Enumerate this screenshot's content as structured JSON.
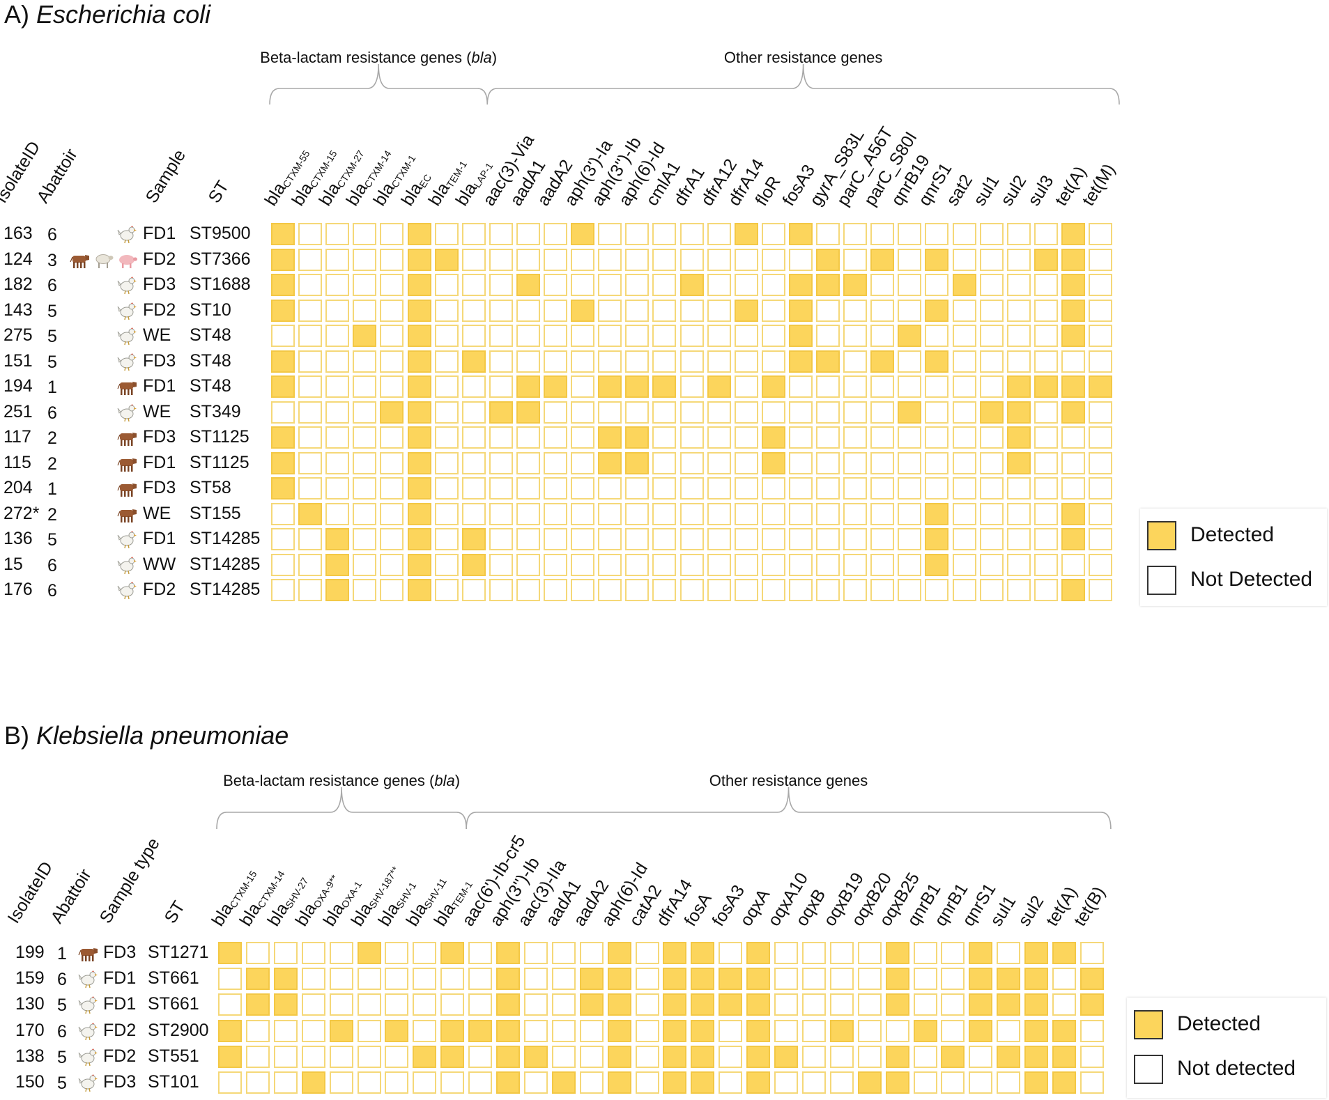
{
  "legend_colors": {
    "detected": "#fcd55c",
    "not_detected": "#ffffff",
    "cell_border": "#f5d878"
  },
  "panels": [
    {
      "title_prefix": "A) ",
      "title_species": "Escherichia coli",
      "group_bla_label": "Beta-lactam resistance genes (",
      "group_bla_italic": "bla",
      "group_bla_close": ")",
      "group_other_label": "Other resistance genes",
      "col_headers": {
        "isolate": "IsolateID",
        "abattoir": "Abattoir",
        "sample": "Sample",
        "st": "ST"
      },
      "legend": {
        "detected": "Detected",
        "not_detected": "Not Detected"
      },
      "genes": [
        {
          "base": "bla",
          "sub": "CTXM-55"
        },
        {
          "base": "bla",
          "sub": "CTXM-15"
        },
        {
          "base": "bla",
          "sub": "CTXM-27"
        },
        {
          "base": "bla",
          "sub": "CTXM-14"
        },
        {
          "base": "bla",
          "sub": "CTXM-1"
        },
        {
          "base": "bla",
          "sub": "EC"
        },
        {
          "base": "bla",
          "sub": "TEM-1"
        },
        {
          "base": "bla",
          "sub": "LAP-1"
        },
        {
          "base": "aac(3)-Via"
        },
        {
          "base": "aadA1"
        },
        {
          "base": "aadA2"
        },
        {
          "base": "aph(3')-Ia"
        },
        {
          "base": "aph(3'')-Ib"
        },
        {
          "base": "aph(6)-Id"
        },
        {
          "base": "cmlA1"
        },
        {
          "base": "dfrA1"
        },
        {
          "base": "dfrA12"
        },
        {
          "base": "dfrA14"
        },
        {
          "base": "floR"
        },
        {
          "base": "fosA3"
        },
        {
          "base": "gyrA_S83L"
        },
        {
          "base": "parC_A56T"
        },
        {
          "base": "parC_S80I"
        },
        {
          "base": "qnrB19"
        },
        {
          "base": "qnrS1"
        },
        {
          "base": "sat2"
        },
        {
          "base": "sul1"
        },
        {
          "base": "sul2"
        },
        {
          "base": "sul3"
        },
        {
          "base": "tet(A)"
        },
        {
          "base": "tet(M)"
        }
      ],
      "rows": [
        {
          "id": "163",
          "abattoir": "6",
          "animals": [
            "chicken"
          ],
          "sample": "FD1",
          "st": "ST9500",
          "detected": [
            0,
            5,
            11,
            17,
            19,
            29
          ]
        },
        {
          "id": "124",
          "abattoir": "3",
          "animals": [
            "cow",
            "sheep",
            "pig"
          ],
          "sample": "FD2",
          "st": "ST7366",
          "detected": [
            0,
            5,
            6,
            20,
            22,
            24,
            28,
            29
          ]
        },
        {
          "id": "182",
          "abattoir": "6",
          "animals": [
            "chicken"
          ],
          "sample": "FD3",
          "st": "ST1688",
          "detected": [
            0,
            5,
            9,
            15,
            19,
            20,
            21,
            25,
            29
          ]
        },
        {
          "id": "143",
          "abattoir": "5",
          "animals": [
            "chicken"
          ],
          "sample": "FD2",
          "st": "ST10",
          "detected": [
            0,
            5,
            11,
            17,
            19,
            24,
            29
          ]
        },
        {
          "id": "275",
          "abattoir": "5",
          "animals": [
            "chicken"
          ],
          "sample": "WE",
          "st": "ST48",
          "detected": [
            3,
            5,
            19,
            23,
            29
          ]
        },
        {
          "id": "151",
          "abattoir": "5",
          "animals": [
            "chicken"
          ],
          "sample": "FD3",
          "st": "ST48",
          "detected": [
            0,
            5,
            7,
            19,
            20,
            22,
            24
          ]
        },
        {
          "id": "194",
          "abattoir": "1",
          "animals": [
            "cow"
          ],
          "sample": "FD1",
          "st": "ST48",
          "detected": [
            0,
            5,
            9,
            10,
            12,
            13,
            14,
            16,
            18,
            27,
            28,
            29,
            30
          ]
        },
        {
          "id": "251",
          "abattoir": "6",
          "animals": [
            "chicken"
          ],
          "sample": "WE",
          "st": "ST349",
          "detected": [
            4,
            5,
            8,
            9,
            23,
            26,
            27,
            29
          ]
        },
        {
          "id": "117",
          "abattoir": "2",
          "animals": [
            "cow"
          ],
          "sample": "FD3",
          "st": "ST1125",
          "detected": [
            0,
            5,
            12,
            13,
            18,
            27
          ]
        },
        {
          "id": "115",
          "abattoir": "2",
          "animals": [
            "cow"
          ],
          "sample": "FD1",
          "st": "ST1125",
          "detected": [
            0,
            5,
            12,
            13,
            18,
            27
          ]
        },
        {
          "id": "204",
          "abattoir": "1",
          "animals": [
            "cow"
          ],
          "sample": "FD3",
          "st": "ST58",
          "detected": [
            0,
            5
          ]
        },
        {
          "id": "272*",
          "abattoir": "2",
          "animals": [
            "cow"
          ],
          "sample": "WE",
          "st": "ST155",
          "detected": [
            1,
            5,
            24,
            29
          ]
        },
        {
          "id": "136",
          "abattoir": "5",
          "animals": [
            "chicken"
          ],
          "sample": "FD1",
          "st": "ST14285",
          "detected": [
            2,
            5,
            7,
            24,
            29
          ]
        },
        {
          "id": "15",
          "abattoir": "6",
          "animals": [
            "chicken"
          ],
          "sample": "WW",
          "st": "ST14285",
          "detected": [
            2,
            5,
            7,
            24
          ]
        },
        {
          "id": "176",
          "abattoir": "6",
          "animals": [
            "chicken"
          ],
          "sample": "FD2",
          "st": "ST14285",
          "detected": [
            2,
            5,
            29
          ]
        }
      ]
    },
    {
      "title_prefix": "B) ",
      "title_species": "Klebsiella pneumoniae",
      "group_bla_label": "Beta-lactam resistance genes (",
      "group_bla_italic": "bla",
      "group_bla_close": ")",
      "group_other_label": "Other resistance genes",
      "col_headers": {
        "isolate": "IsolateID",
        "abattoir": "Abattoir",
        "sample": "Sample type",
        "st": "ST"
      },
      "legend": {
        "detected": "Detected",
        "not_detected": "Not detected"
      },
      "genes": [
        {
          "base": "bla",
          "sub": "CTXM-15"
        },
        {
          "base": "bla",
          "sub": "CTXM-14"
        },
        {
          "base": "bla",
          "sub": "SHV-27"
        },
        {
          "base": "bla",
          "sub": "OXA-9**"
        },
        {
          "base": "bla",
          "sub": "OXA-1"
        },
        {
          "base": "bla",
          "sub": "SHV-187**"
        },
        {
          "base": "bla",
          "sub": "SHV-1"
        },
        {
          "base": "bla",
          "sub": "SHV-11"
        },
        {
          "base": "bla",
          "sub": "TEM-1"
        },
        {
          "base": "aac(6')-Ib-cr5"
        },
        {
          "base": "aph(3'')-Ib"
        },
        {
          "base": "aac(3)-IIa"
        },
        {
          "base": "aadA1"
        },
        {
          "base": "aadA2"
        },
        {
          "base": "aph(6)-Id"
        },
        {
          "base": "catA2"
        },
        {
          "base": "dfrA14"
        },
        {
          "base": "fosA"
        },
        {
          "base": "fosA3"
        },
        {
          "base": "oqxA"
        },
        {
          "base": "oqxA10"
        },
        {
          "base": "oqxB"
        },
        {
          "base": "oqxB19"
        },
        {
          "base": "oqxB20"
        },
        {
          "base": "oqxB25"
        },
        {
          "base": "qnrB1"
        },
        {
          "base": "qnrB1"
        },
        {
          "base": "qnrS1"
        },
        {
          "base": "sul1"
        },
        {
          "base": "sul2"
        },
        {
          "base": "tet(A)"
        },
        {
          "base": "tet(B)"
        }
      ],
      "rows": [
        {
          "id": "199",
          "abattoir": "1",
          "animals": [
            "cow"
          ],
          "sample": "FD3",
          "st": "ST1271",
          "detected": [
            0,
            5,
            8,
            10,
            14,
            16,
            17,
            19,
            24,
            27,
            29,
            30
          ]
        },
        {
          "id": "159",
          "abattoir": "6",
          "animals": [
            "chicken"
          ],
          "sample": "FD1",
          "st": "ST661",
          "detected": [
            1,
            2,
            10,
            13,
            14,
            16,
            17,
            18,
            19,
            24,
            27,
            28,
            29,
            31
          ]
        },
        {
          "id": "130",
          "abattoir": "5",
          "animals": [
            "chicken"
          ],
          "sample": "FD1",
          "st": "ST661",
          "detected": [
            1,
            2,
            10,
            13,
            14,
            16,
            17,
            18,
            19,
            24,
            27,
            28,
            29,
            31
          ]
        },
        {
          "id": "170",
          "abattoir": "6",
          "animals": [
            "chicken"
          ],
          "sample": "FD2",
          "st": "ST2900",
          "detected": [
            0,
            4,
            6,
            8,
            9,
            10,
            14,
            16,
            17,
            19,
            22,
            25,
            27,
            29,
            30
          ]
        },
        {
          "id": "138",
          "abattoir": "5",
          "animals": [
            "chicken"
          ],
          "sample": "FD2",
          "st": "ST551",
          "detected": [
            0,
            7,
            8,
            10,
            11,
            14,
            16,
            17,
            19,
            20,
            24,
            26,
            28,
            29,
            30
          ]
        },
        {
          "id": "150",
          "abattoir": "5",
          "animals": [
            "chicken"
          ],
          "sample": "FD3",
          "st": "ST101",
          "detected": [
            3,
            10,
            12,
            14,
            16,
            17,
            19,
            23,
            24,
            29,
            30
          ]
        }
      ]
    }
  ],
  "chart_data": [
    {
      "type": "heatmap",
      "title": "A) Escherichia coli",
      "x_categories": [
        "blaCTXM-55",
        "blaCTXM-15",
        "blaCTXM-27",
        "blaCTXM-14",
        "blaCTXM-1",
        "blaEC",
        "blaTEM-1",
        "blaLAP-1",
        "aac(3)-Via",
        "aadA1",
        "aadA2",
        "aph(3')-Ia",
        "aph(3'')-Ib",
        "aph(6)-Id",
        "cmlA1",
        "dfrA1",
        "dfrA12",
        "dfrA14",
        "floR",
        "fosA3",
        "gyrA_S83L",
        "parC_A56T",
        "parC_S80I",
        "qnrB19",
        "qnrS1",
        "sat2",
        "sul1",
        "sul2",
        "sul3",
        "tet(A)",
        "tet(M)"
      ],
      "y_categories": [
        "163",
        "124",
        "182",
        "143",
        "275",
        "151",
        "194",
        "251",
        "117",
        "115",
        "204",
        "272*",
        "136",
        "15",
        "176"
      ],
      "values": "binary presence matrix: see panels[0].rows[].detected (column indices)",
      "legend": [
        "Detected",
        "Not Detected"
      ]
    },
    {
      "type": "heatmap",
      "title": "B) Klebsiella pneumoniae",
      "x_categories": [
        "blaCTXM-15",
        "blaCTXM-14",
        "blaSHV-27",
        "blaOXA-9**",
        "blaOXA-1",
        "blaSHV-187**",
        "blaSHV-1",
        "blaSHV-11",
        "blaTEM-1",
        "aac(6')-Ib-cr5",
        "aph(3'')-Ib",
        "aac(3)-IIa",
        "aadA1",
        "aadA2",
        "aph(6)-Id",
        "catA2",
        "dfrA14",
        "fosA",
        "fosA3",
        "oqxA",
        "oqxA10",
        "oqxB",
        "oqxB19",
        "oqxB20",
        "oqxB25",
        "qnrB1",
        "qnrB1",
        "qnrS1",
        "sul1",
        "sul2",
        "tet(A)",
        "tet(B)"
      ],
      "y_categories": [
        "199",
        "159",
        "130",
        "170",
        "138",
        "150"
      ],
      "values": "binary presence matrix: see panels[1].rows[].detected (column indices)",
      "legend": [
        "Detected",
        "Not detected"
      ]
    }
  ]
}
